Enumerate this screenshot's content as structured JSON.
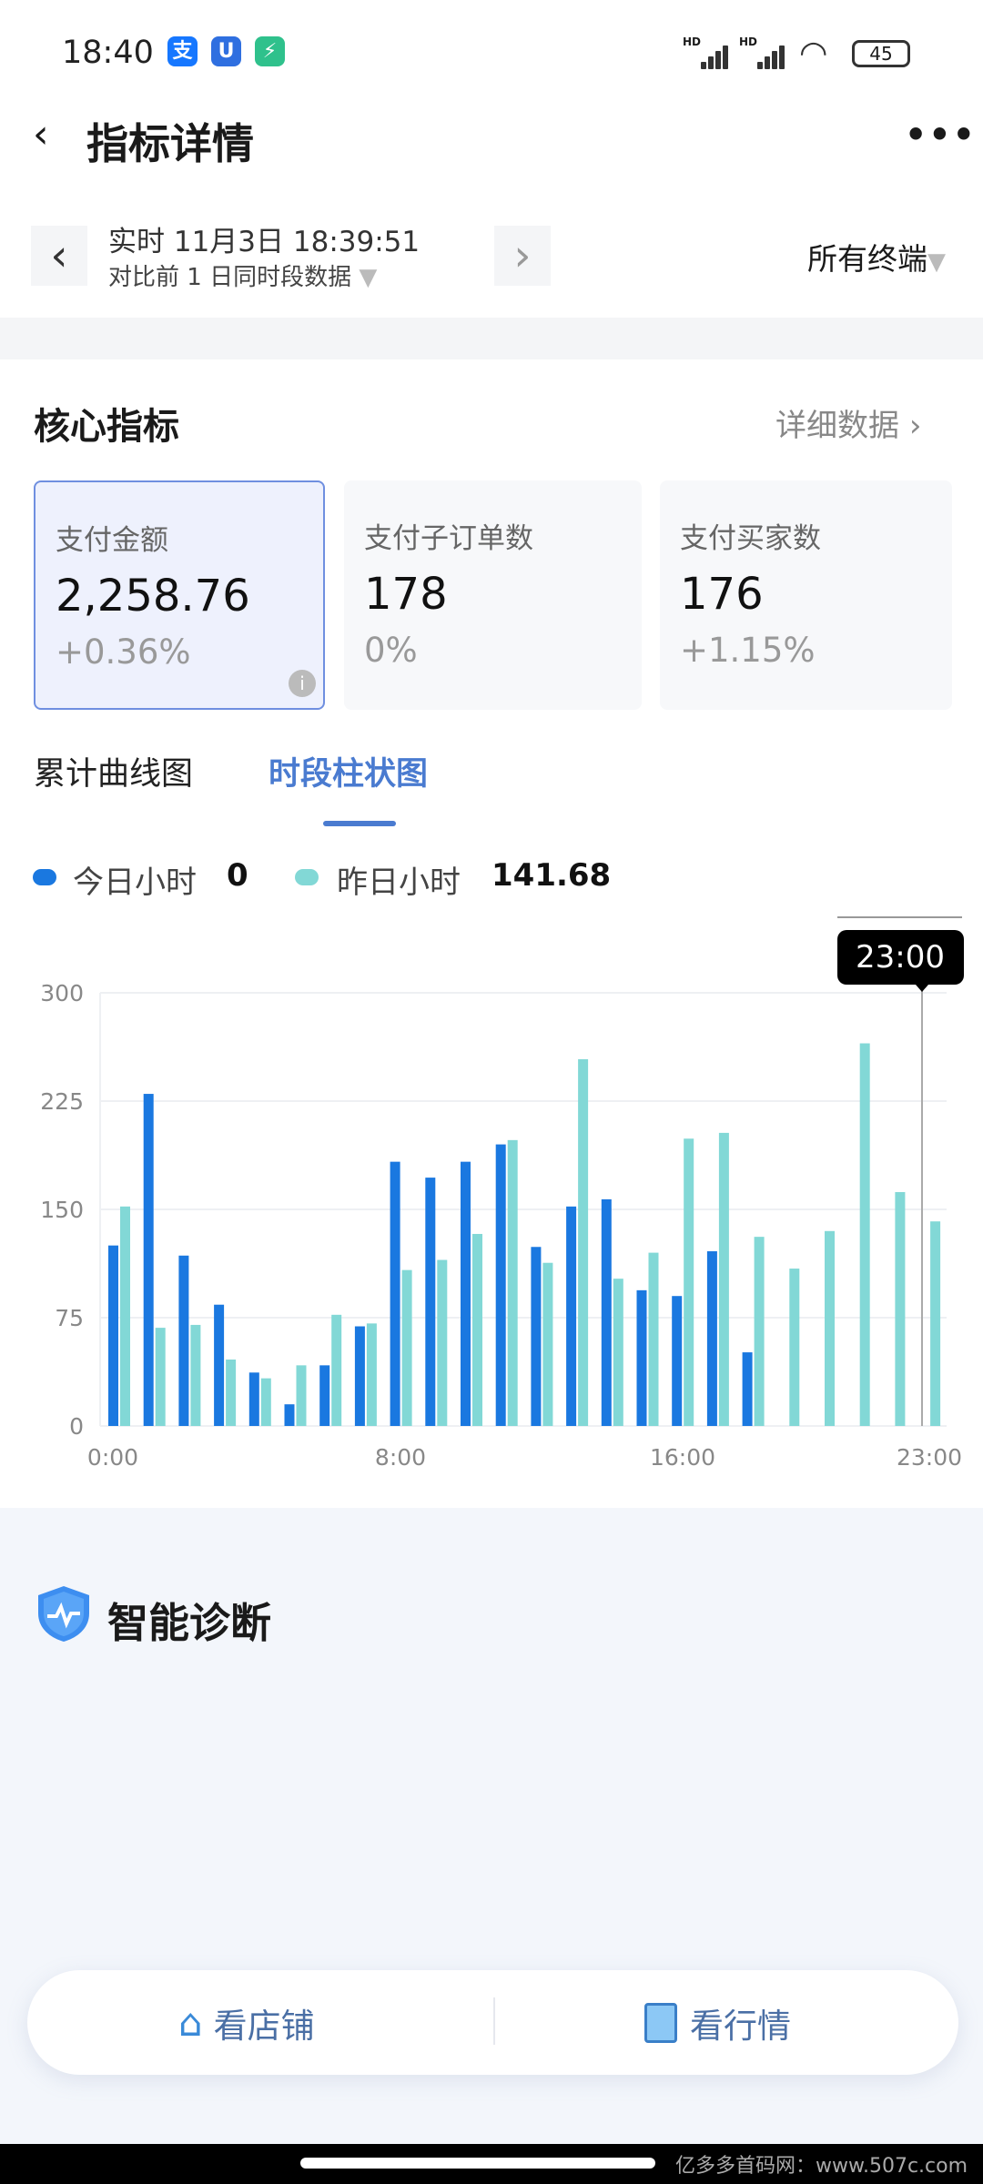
{
  "status_bar": {
    "time": "18:40",
    "battery": "45",
    "network_labels": [
      "HD",
      "HD"
    ],
    "app_icons": [
      "alipay-icon",
      "app-icon",
      "security-icon"
    ]
  },
  "header": {
    "title": "指标详情",
    "back_icon": "chevron-left-icon",
    "more_icon": "more-dots-icon"
  },
  "date_selector": {
    "line1": "实时 11月3日 18:39:51",
    "line2": "对比前 1 日同时段数据",
    "terminal": "所有终端"
  },
  "core": {
    "title": "核心指标",
    "detail_link": "详细数据",
    "cards": [
      {
        "label": "支付金额",
        "value": "2,258.76",
        "change": "+0.36%",
        "selected": true
      },
      {
        "label": "支付子订单数",
        "value": "178",
        "change": "0%"
      },
      {
        "label": "支付买家数",
        "value": "176",
        "change": "+1.15%"
      }
    ]
  },
  "tabs": [
    {
      "label": "累计曲线图",
      "active": false
    },
    {
      "label": "时段柱状图",
      "active": true
    }
  ],
  "legend": {
    "today_label": "今日小时",
    "today_value": "0",
    "yesterday_label": "昨日小时",
    "yesterday_value": "141.68"
  },
  "colors": {
    "accent": "#4a7bd0",
    "today": "#1a78e0",
    "yesterday": "#82d8d6"
  },
  "chart_data": {
    "type": "bar",
    "categories": [
      "0:00",
      "1:00",
      "2:00",
      "3:00",
      "4:00",
      "5:00",
      "6:00",
      "7:00",
      "8:00",
      "9:00",
      "10:00",
      "11:00",
      "12:00",
      "13:00",
      "14:00",
      "15:00",
      "16:00",
      "17:00",
      "18:00",
      "19:00",
      "20:00",
      "21:00",
      "22:00",
      "23:00"
    ],
    "x_tick_labels": [
      "0:00",
      "8:00",
      "16:00",
      "23:00"
    ],
    "y_tick_labels": [
      "0",
      "75",
      "150",
      "225",
      "300"
    ],
    "ylim": [
      0,
      300
    ],
    "grid": true,
    "tooltip": "23:00",
    "series": [
      {
        "name": "今日小时",
        "values": [
          125,
          230,
          118,
          84,
          37,
          15,
          42,
          69,
          183,
          172,
          183,
          195,
          124,
          152,
          157,
          94,
          90,
          121,
          51,
          0,
          0,
          0,
          0,
          0
        ]
      },
      {
        "name": "昨日小时",
        "values": [
          152,
          68,
          70,
          46,
          33,
          42,
          77,
          71,
          108,
          115,
          133,
          198,
          113,
          254,
          102,
          120,
          199,
          203,
          131,
          109,
          135,
          265,
          162,
          141.68
        ]
      }
    ]
  },
  "diagnosis": {
    "title": "智能诊断"
  },
  "bottom_bar": {
    "store": "看店铺",
    "market": "看行情"
  },
  "watermark": "亿多多首码网：www.507c.com"
}
